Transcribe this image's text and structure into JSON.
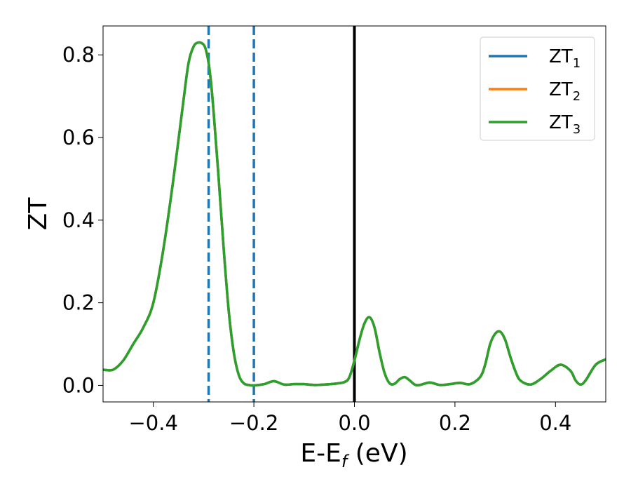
{
  "chart_data": {
    "type": "line",
    "xlabel": "E-E",
    "xlabel_sub": "f",
    "xlabel_unit": " (eV)",
    "ylabel": "ZT",
    "xlim": [
      -0.5,
      0.5
    ],
    "ylim": [
      -0.04,
      0.87
    ],
    "x_ticks": [
      -0.4,
      -0.2,
      0.0,
      0.2,
      0.4
    ],
    "x_tick_labels": [
      "−0.4",
      "−0.2",
      "0.0",
      "0.2",
      "0.4"
    ],
    "y_ticks": [
      0.0,
      0.2,
      0.4,
      0.6,
      0.8
    ],
    "y_tick_labels": [
      "0.0",
      "0.2",
      "0.4",
      "0.6",
      "0.8"
    ],
    "grid": false,
    "legend_position": "top-right",
    "reference_lines": [
      {
        "x": -0.29,
        "style": "dashed",
        "color": "#1f77b4"
      },
      {
        "x": -0.2,
        "style": "dashed",
        "color": "#1f77b4"
      },
      {
        "x": 0.0,
        "style": "solid",
        "color": "#000000"
      }
    ],
    "x": [
      -0.5,
      -0.48,
      -0.46,
      -0.44,
      -0.42,
      -0.4,
      -0.38,
      -0.36,
      -0.34,
      -0.33,
      -0.32,
      -0.31,
      -0.3,
      -0.295,
      -0.29,
      -0.285,
      -0.28,
      -0.27,
      -0.26,
      -0.25,
      -0.24,
      -0.23,
      -0.22,
      -0.21,
      -0.2,
      -0.18,
      -0.16,
      -0.14,
      -0.12,
      -0.1,
      -0.08,
      -0.06,
      -0.04,
      -0.02,
      -0.01,
      0.0,
      0.01,
      0.02,
      0.03,
      0.04,
      0.05,
      0.06,
      0.07,
      0.08,
      0.09,
      0.1,
      0.11,
      0.12,
      0.13,
      0.15,
      0.17,
      0.19,
      0.21,
      0.23,
      0.25,
      0.26,
      0.27,
      0.28,
      0.29,
      0.3,
      0.31,
      0.32,
      0.33,
      0.35,
      0.37,
      0.39,
      0.41,
      0.43,
      0.44,
      0.45,
      0.46,
      0.48,
      0.5
    ],
    "series": [
      {
        "name": "ZT",
        "name_sub": "1",
        "color": "#1f77b4",
        "values": [
          0.038,
          0.038,
          0.06,
          0.1,
          0.14,
          0.2,
          0.33,
          0.5,
          0.69,
          0.78,
          0.82,
          0.83,
          0.825,
          0.81,
          0.78,
          0.73,
          0.66,
          0.5,
          0.33,
          0.18,
          0.08,
          0.025,
          0.005,
          0.001,
          0.0,
          0.003,
          0.01,
          0.002,
          0.003,
          0.003,
          0.001,
          0.002,
          0.004,
          0.008,
          0.02,
          0.06,
          0.11,
          0.15,
          0.165,
          0.14,
          0.08,
          0.03,
          0.005,
          0.004,
          0.015,
          0.02,
          0.012,
          0.002,
          0.001,
          0.007,
          0.001,
          0.003,
          0.006,
          0.003,
          0.02,
          0.05,
          0.1,
          0.125,
          0.13,
          0.11,
          0.07,
          0.035,
          0.012,
          0.002,
          0.015,
          0.035,
          0.05,
          0.035,
          0.012,
          0.002,
          0.012,
          0.05,
          0.063
        ]
      },
      {
        "name": "ZT",
        "name_sub": "2",
        "color": "#ff7f0e",
        "values": [
          0.038,
          0.038,
          0.06,
          0.1,
          0.14,
          0.2,
          0.33,
          0.5,
          0.69,
          0.78,
          0.82,
          0.83,
          0.825,
          0.81,
          0.78,
          0.73,
          0.66,
          0.5,
          0.33,
          0.18,
          0.08,
          0.025,
          0.005,
          0.001,
          0.0,
          0.003,
          0.01,
          0.002,
          0.003,
          0.003,
          0.001,
          0.002,
          0.004,
          0.008,
          0.02,
          0.06,
          0.11,
          0.15,
          0.165,
          0.14,
          0.08,
          0.03,
          0.005,
          0.004,
          0.015,
          0.02,
          0.012,
          0.002,
          0.001,
          0.007,
          0.001,
          0.003,
          0.006,
          0.003,
          0.02,
          0.05,
          0.1,
          0.125,
          0.13,
          0.11,
          0.07,
          0.035,
          0.012,
          0.002,
          0.015,
          0.035,
          0.05,
          0.035,
          0.012,
          0.002,
          0.012,
          0.05,
          0.063
        ]
      },
      {
        "name": "ZT",
        "name_sub": "3",
        "color": "#2ca02c",
        "values": [
          0.038,
          0.038,
          0.06,
          0.1,
          0.14,
          0.2,
          0.33,
          0.5,
          0.69,
          0.78,
          0.82,
          0.83,
          0.825,
          0.81,
          0.78,
          0.73,
          0.66,
          0.5,
          0.33,
          0.18,
          0.08,
          0.025,
          0.005,
          0.001,
          0.0,
          0.003,
          0.01,
          0.002,
          0.003,
          0.003,
          0.001,
          0.002,
          0.004,
          0.008,
          0.02,
          0.06,
          0.11,
          0.15,
          0.165,
          0.14,
          0.08,
          0.03,
          0.005,
          0.004,
          0.015,
          0.02,
          0.012,
          0.002,
          0.001,
          0.007,
          0.001,
          0.003,
          0.006,
          0.003,
          0.02,
          0.05,
          0.1,
          0.125,
          0.13,
          0.11,
          0.07,
          0.035,
          0.012,
          0.002,
          0.015,
          0.035,
          0.05,
          0.035,
          0.012,
          0.002,
          0.012,
          0.05,
          0.063
        ]
      }
    ]
  }
}
